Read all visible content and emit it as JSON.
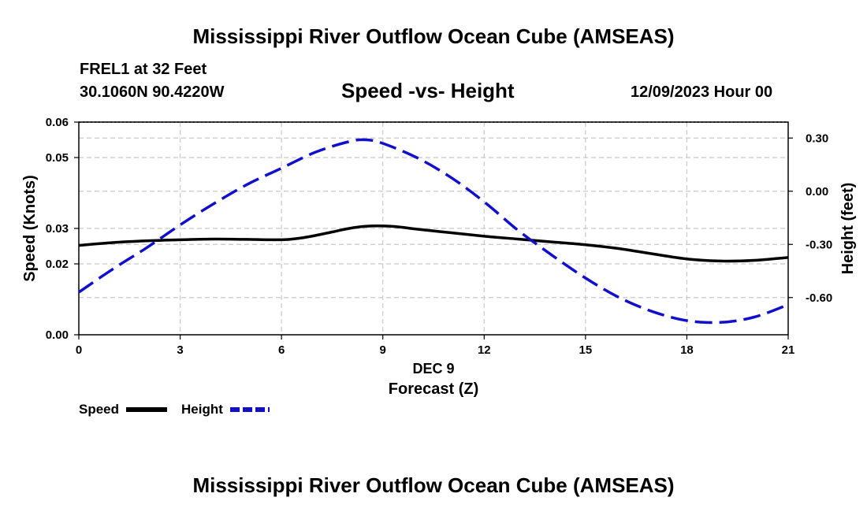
{
  "page": {
    "title_top": "Mississippi River Outflow Ocean Cube (AMSEAS)",
    "title_bottom": "Mississippi River Outflow Ocean Cube (AMSEAS)",
    "station": "FREL1 at 32 Feet",
    "coords": "30.1060N  90.4220W",
    "datetime": "12/09/2023 Hour 00"
  },
  "colors": {
    "speed": "#000000",
    "height": "#1010cc",
    "grid": "#c8c8c8"
  },
  "chart_data": {
    "type": "line",
    "title": "Speed -vs- Height",
    "xlabel": "Forecast (Z)",
    "xlabel_sub": "DEC 9",
    "ylabel": "Speed (Knots)",
    "y2label": "Height (feet)",
    "x_ticks": [
      0,
      3,
      6,
      9,
      12,
      15,
      18,
      21
    ],
    "x_tick_labels": [
      "0",
      "3",
      "6",
      "9",
      "12",
      "15",
      "18",
      "21"
    ],
    "xlim": [
      0,
      21
    ],
    "ylim": [
      0,
      0.06
    ],
    "y_ticks": [
      0,
      0.02,
      0.03,
      0.05,
      0.06
    ],
    "y_tick_labels": [
      "0.00",
      "0.02",
      "0.03",
      "0.05",
      "0.06"
    ],
    "y2lim": [
      -0.81,
      0.39
    ],
    "y2_ticks": [
      0.3,
      0.0,
      -0.3,
      -0.6
    ],
    "y2_tick_labels": [
      "0.30",
      "0.00",
      "-0.30",
      "-0.60"
    ],
    "grid": true,
    "series": [
      {
        "name": "Speed",
        "axis": "left",
        "style": "solid",
        "x": [
          0,
          1,
          2,
          3,
          4,
          5,
          6,
          6.5,
          7,
          7.5,
          8,
          8.5,
          9,
          9.5,
          10,
          11,
          12,
          13,
          14,
          15,
          16,
          17,
          18,
          19,
          20,
          21
        ],
        "values": [
          0.0252,
          0.026,
          0.0265,
          0.0268,
          0.027,
          0.0269,
          0.0268,
          0.0272,
          0.028,
          0.029,
          0.03,
          0.0306,
          0.0307,
          0.0304,
          0.0298,
          0.0288,
          0.0278,
          0.027,
          0.0262,
          0.0254,
          0.0243,
          0.0228,
          0.0214,
          0.0208,
          0.021,
          0.0218
        ]
      },
      {
        "name": "Height",
        "axis": "right",
        "style": "dashed",
        "x": [
          0,
          1,
          2,
          3,
          4,
          5,
          6,
          7,
          8,
          8.5,
          9,
          10,
          11,
          12,
          13,
          14,
          15,
          16,
          17,
          18,
          19,
          20,
          21
        ],
        "values": [
          -0.57,
          -0.44,
          -0.32,
          -0.19,
          -0.07,
          0.04,
          0.13,
          0.22,
          0.28,
          0.29,
          0.27,
          0.19,
          0.08,
          -0.06,
          -0.22,
          -0.36,
          -0.49,
          -0.6,
          -0.68,
          -0.73,
          -0.74,
          -0.71,
          -0.64
        ]
      }
    ],
    "legend": [
      {
        "label": "Speed",
        "series": "Speed"
      },
      {
        "label": "Height",
        "series": "Height"
      }
    ],
    "legend_placement": "bottom-left"
  }
}
